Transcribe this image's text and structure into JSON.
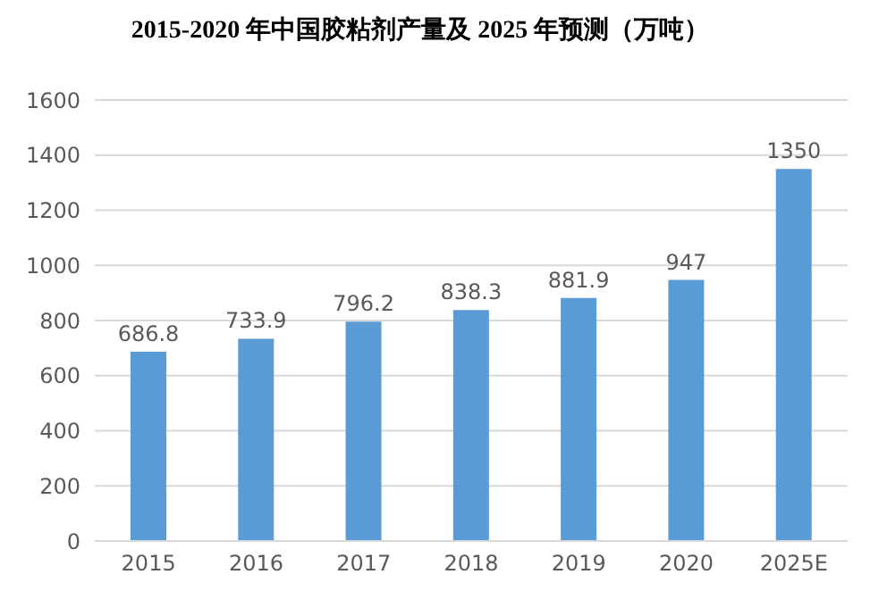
{
  "chart_data": {
    "type": "bar",
    "title": "2015-2020 年中国胶粘剂产量及 2025 年预测（万吨）",
    "categories": [
      "2015",
      "2016",
      "2017",
      "2018",
      "2019",
      "2020",
      "2025E"
    ],
    "values": [
      686.8,
      733.9,
      796.2,
      838.3,
      881.9,
      947,
      1350
    ],
    "color": "#5b9bd5",
    "ylim": [
      0,
      1600
    ],
    "yticks": [
      0,
      200,
      400,
      600,
      800,
      1000,
      1200,
      1400,
      1600
    ],
    "grid": "y",
    "data_labels": true
  }
}
